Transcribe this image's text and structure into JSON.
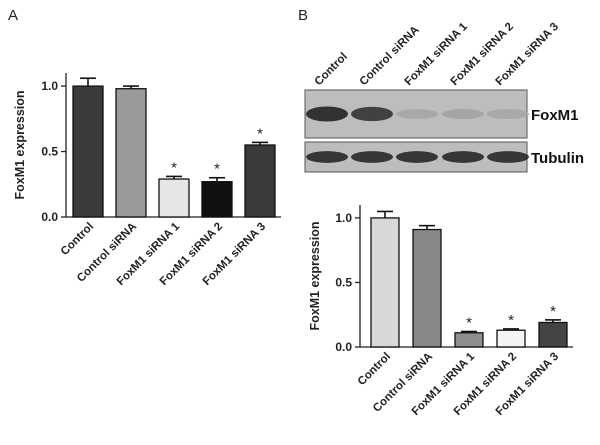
{
  "panels": {
    "a_letter": "A",
    "b_letter": "B"
  },
  "blot": {
    "lane_labels": [
      "Control",
      "Control siRNA",
      "FoxM1 siRNA 1",
      "FoxM1 siRNA 2",
      "FoxM1 siRNA 3"
    ],
    "bands": [
      {
        "label": "FoxM1",
        "intensities": [
          0.95,
          0.85,
          0.2,
          0.22,
          0.2
        ]
      },
      {
        "label": "Tubulin",
        "intensities": [
          0.92,
          0.92,
          0.92,
          0.92,
          0.92
        ]
      }
    ]
  },
  "chart_data": [
    {
      "type": "bar",
      "panel": "A",
      "categories": [
        "Control",
        "Control siRNA",
        "FoxM1 siRNA 1",
        "FoxM1 siRNA 2",
        "FoxM1 siRNA 3"
      ],
      "values": [
        1.0,
        0.98,
        0.29,
        0.27,
        0.55
      ],
      "errors": [
        0.06,
        0.02,
        0.02,
        0.03,
        0.02
      ],
      "significance": [
        "",
        "",
        "*",
        "*",
        "*"
      ],
      "colors": [
        "#3a3a3a",
        "#9a9a9a",
        "#e6e6e6",
        "#111111",
        "#3a3a3a"
      ],
      "ylabel": "FoxM1 expression",
      "ylim": [
        0,
        1.1
      ],
      "yticks": [
        "0.0",
        "0.5",
        "1.0"
      ]
    },
    {
      "type": "bar",
      "panel": "B",
      "categories": [
        "Control",
        "Control siRNA",
        "FoxM1 siRNA 1",
        "FoxM1 siRNA 2",
        "FoxM1 siRNA 3"
      ],
      "values": [
        1.0,
        0.91,
        0.11,
        0.13,
        0.19
      ],
      "errors": [
        0.05,
        0.03,
        0.01,
        0.01,
        0.02
      ],
      "significance": [
        "",
        "",
        "*",
        "*",
        "*"
      ],
      "colors": [
        "#d8d8d8",
        "#888888",
        "#8e8e8e",
        "#f4f4f4",
        "#444444"
      ],
      "ylabel": "FoxM1 expression",
      "ylim": [
        0,
        1.1
      ],
      "yticks": [
        "0.0",
        "0.5",
        "1.0"
      ]
    }
  ]
}
